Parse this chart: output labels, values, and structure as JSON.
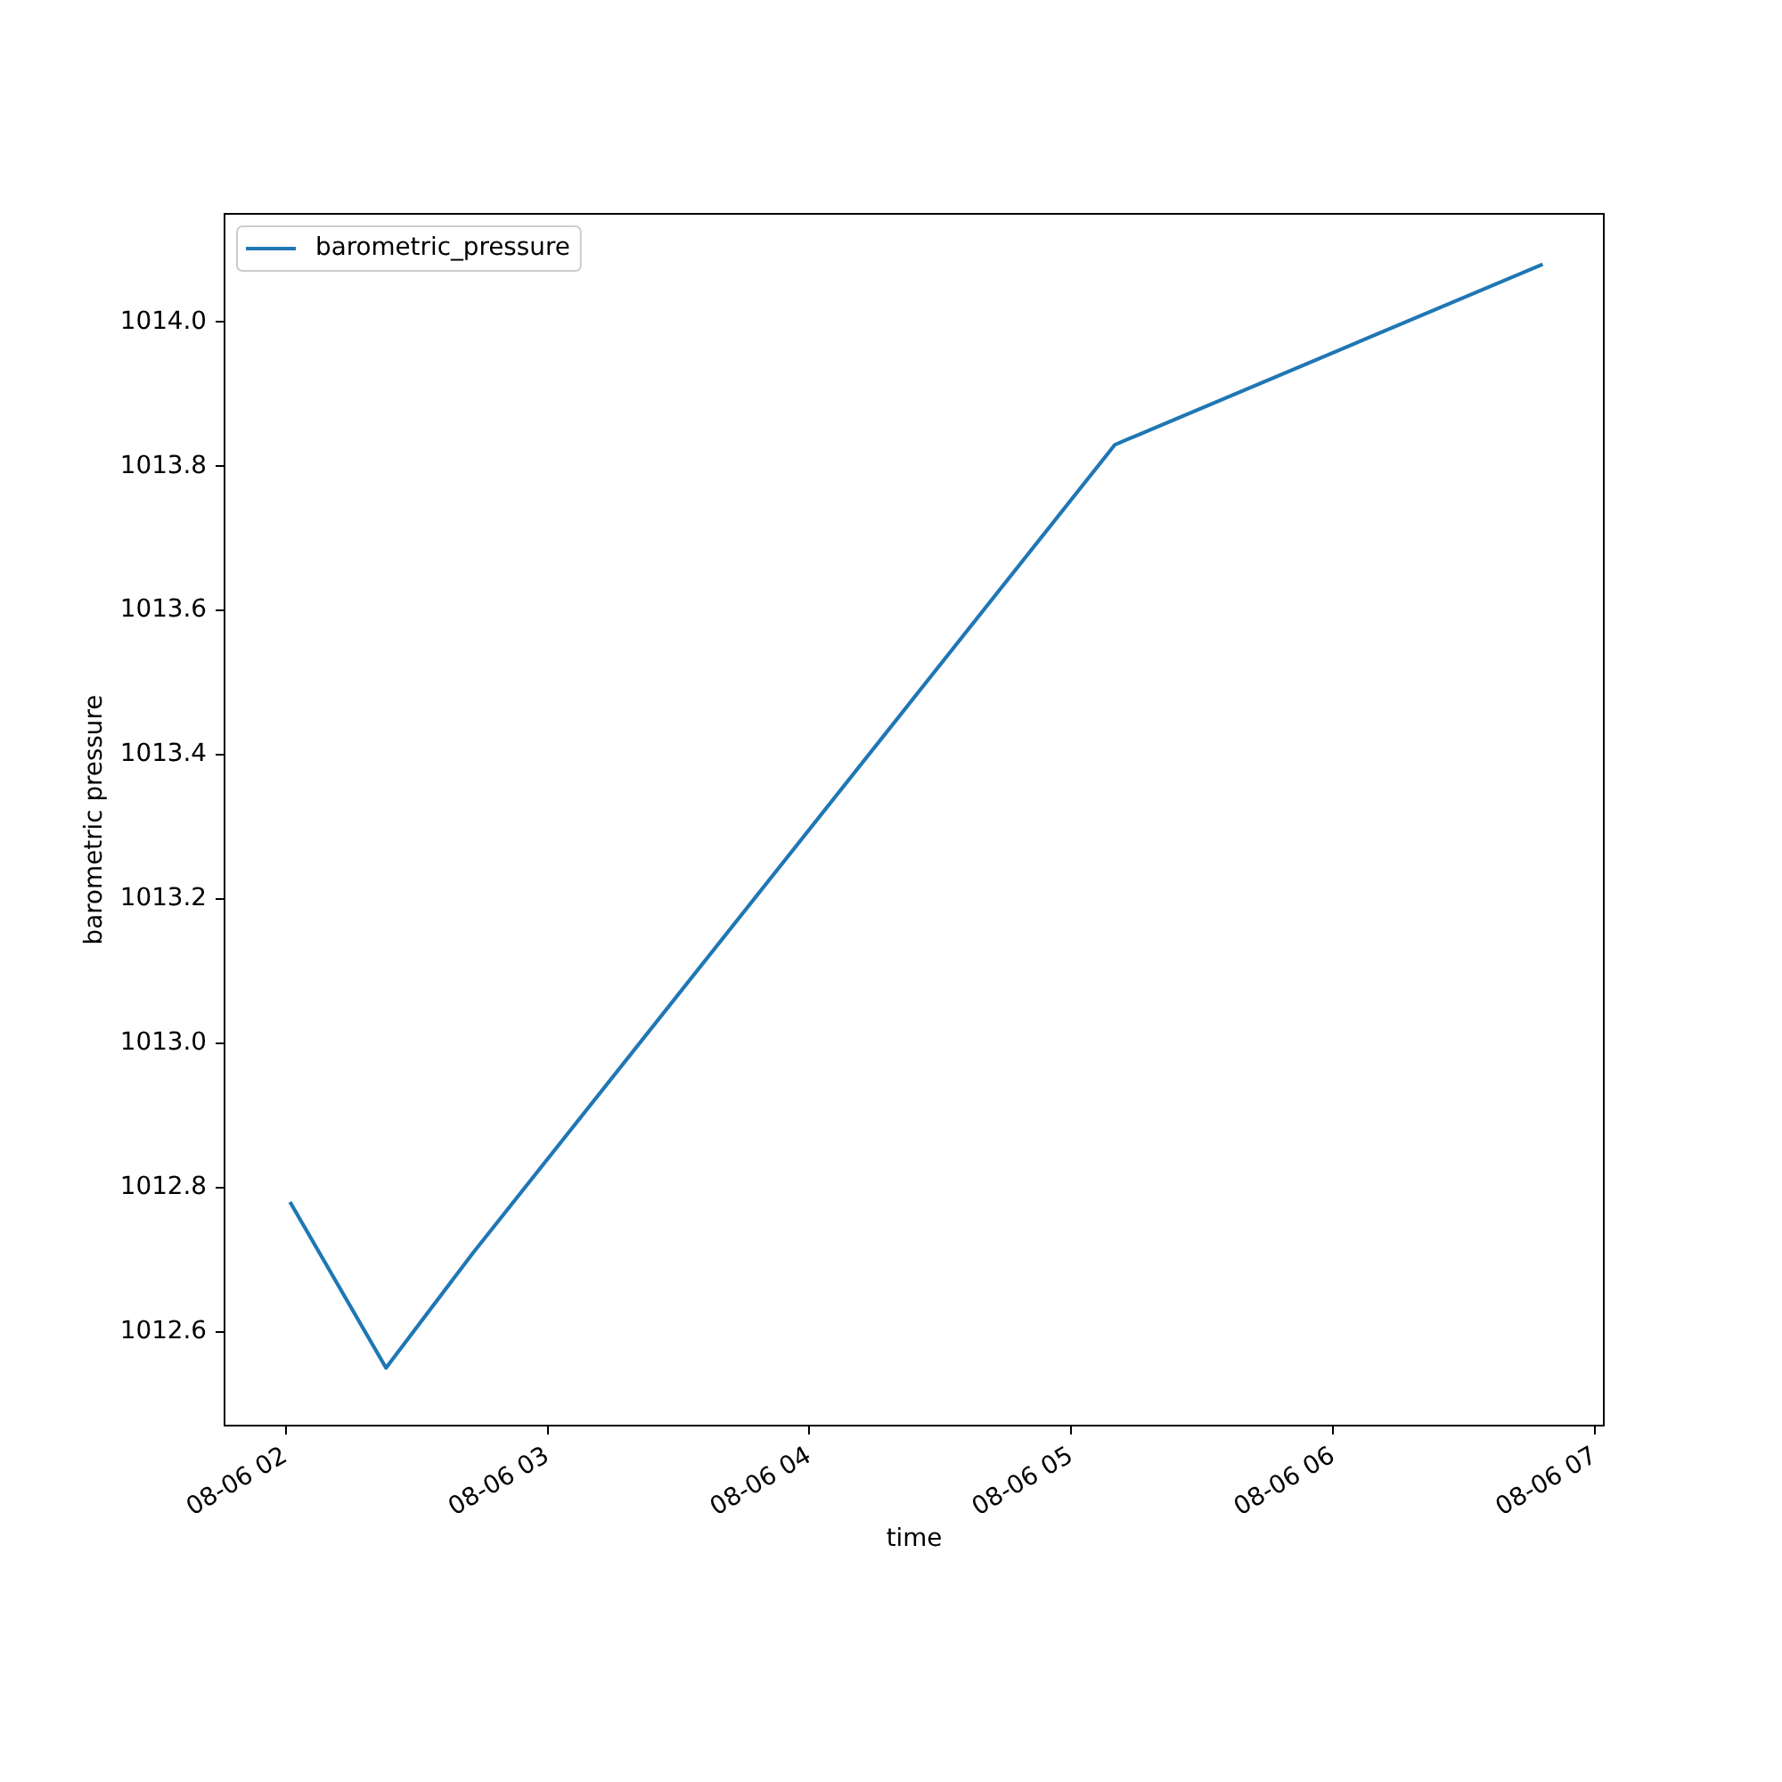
{
  "chart_data": {
    "type": "line",
    "xlabel": "time",
    "ylabel": "barometric pressure",
    "legend": "top left",
    "x": [
      "--08-06T02:01",
      "--08-06T02:23",
      "--08-06T02:43",
      "--08-06T05:10",
      "--08-06T06:48"
    ],
    "series": [
      {
        "name": "barometric_pressure",
        "color": "#1f77b4",
        "values": [
          1012.78,
          1012.55,
          1012.71,
          1013.83,
          1014.08
        ]
      }
    ],
    "xlim": [
      "--08-06T01:46",
      "--08-06T07:02"
    ],
    "xticks": [
      {
        "value": "--08-06T02:00",
        "label": "08-06 02"
      },
      {
        "value": "--08-06T03:00",
        "label": "08-06 03"
      },
      {
        "value": "--08-06T04:00",
        "label": "08-06 04"
      },
      {
        "value": "--08-06T05:00",
        "label": "08-06 05"
      },
      {
        "value": "--08-06T06:00",
        "label": "08-06 06"
      },
      {
        "value": "--08-06T07:00",
        "label": "08-06 07"
      }
    ],
    "ylim": [
      1012.47,
      1014.15
    ],
    "yticks": [
      1012.6,
      1012.8,
      {
        "value": 1013,
        "label": "1013.0"
      },
      1013.2,
      1013.4,
      1013.6,
      1013.8,
      {
        "value": 1014,
        "label": "1014.0"
      }
    ]
  }
}
